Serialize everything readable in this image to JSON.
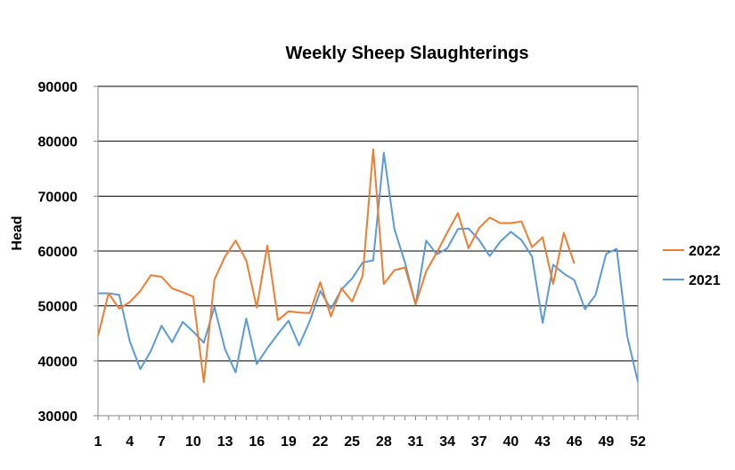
{
  "chart_data": {
    "type": "line",
    "title": "Weekly Sheep Slaughterings",
    "xlabel": "",
    "ylabel": "Head",
    "xlim": [
      1,
      52
    ],
    "ylim": [
      30000,
      90000
    ],
    "yticks": [
      30000,
      40000,
      50000,
      60000,
      70000,
      80000,
      90000
    ],
    "xticks": [
      1,
      4,
      7,
      10,
      13,
      16,
      19,
      22,
      25,
      28,
      31,
      34,
      37,
      40,
      43,
      46,
      49,
      52
    ],
    "grid": "horizontal",
    "legend": "right",
    "series": [
      {
        "name": "2022",
        "color": "#ED7D31",
        "x": [
          1,
          2,
          3,
          4,
          5,
          6,
          7,
          8,
          9,
          10,
          11,
          12,
          13,
          14,
          15,
          16,
          17,
          18,
          19,
          20,
          21,
          22,
          23,
          24,
          25,
          26,
          27,
          28,
          29,
          30,
          31,
          32,
          33,
          34,
          35,
          36,
          37,
          38,
          39,
          40,
          41,
          42,
          43,
          44,
          45,
          46
        ],
        "values": [
          44500,
          52300,
          49500,
          50700,
          52700,
          55600,
          55300,
          53200,
          52500,
          51700,
          36100,
          54800,
          59000,
          61900,
          58300,
          49700,
          61000,
          47400,
          49000,
          48800,
          48700,
          54300,
          48100,
          53200,
          50800,
          55500,
          78500,
          54000,
          56500,
          57000,
          50300,
          56300,
          59700,
          63400,
          66900,
          60500,
          64200,
          66100,
          65100,
          65100,
          65400,
          60700,
          62500,
          54000,
          63300,
          57700
        ]
      },
      {
        "name": "2021",
        "color": "#5B9BD5",
        "x": [
          1,
          2,
          3,
          4,
          5,
          6,
          7,
          8,
          9,
          10,
          11,
          12,
          13,
          14,
          15,
          16,
          17,
          18,
          19,
          20,
          21,
          22,
          23,
          24,
          25,
          26,
          27,
          28,
          29,
          30,
          31,
          32,
          33,
          34,
          35,
          36,
          37,
          38,
          39,
          40,
          41,
          42,
          43,
          44,
          45,
          46,
          47,
          48,
          49,
          50,
          51,
          52
        ],
        "values": [
          52300,
          52300,
          52000,
          43600,
          38500,
          41800,
          46400,
          43400,
          47100,
          45300,
          43300,
          49800,
          42100,
          37900,
          47700,
          39400,
          42300,
          44900,
          47300,
          42800,
          47200,
          52700,
          49500,
          53000,
          55000,
          57900,
          58300,
          77900,
          64000,
          57900,
          50200,
          61900,
          59400,
          60500,
          64000,
          64100,
          62000,
          59100,
          61700,
          63500,
          62000,
          59000,
          46900,
          57500,
          55900,
          54700,
          49400,
          52000,
          59500,
          60400,
          44400,
          36200
        ]
      }
    ]
  }
}
